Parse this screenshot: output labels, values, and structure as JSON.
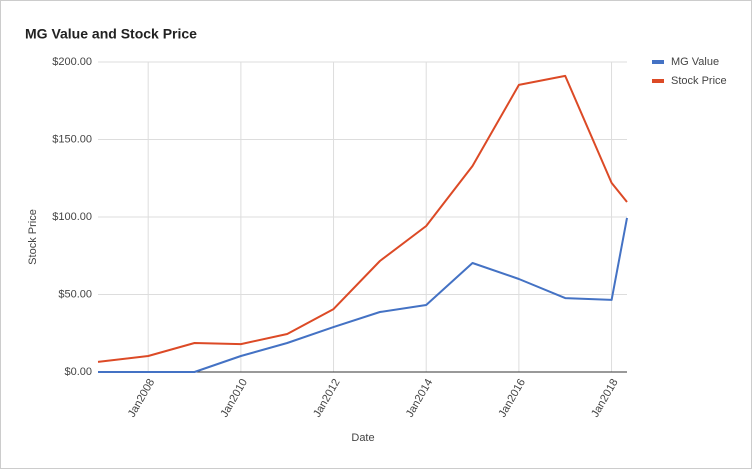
{
  "chart_data": {
    "type": "line",
    "title": "MG Value and Stock Price",
    "x_label": "Date",
    "y_label": "Stock Price",
    "x": [
      "2006-12",
      "2008-01",
      "2009-01",
      "2010-01",
      "2011-01",
      "2012-01",
      "2013-01",
      "2014-01",
      "2015-01",
      "2016-01",
      "2017-01",
      "2018-01",
      "2018-05"
    ],
    "xlim": [
      "2006-12",
      "2018-05"
    ],
    "xticks": [
      {
        "value": "2008-01",
        "label": "Jan2008"
      },
      {
        "value": "2010-01",
        "label": "Jan2010"
      },
      {
        "value": "2012-01",
        "label": "Jan2012"
      },
      {
        "value": "2014-01",
        "label": "Jan2014"
      },
      {
        "value": "2016-01",
        "label": "Jan2016"
      },
      {
        "value": "2018-01",
        "label": "Jan2018"
      }
    ],
    "ylim": [
      0,
      200
    ],
    "yticks": [
      {
        "value": 0,
        "label": "$0.00"
      },
      {
        "value": 50,
        "label": "$50.00"
      },
      {
        "value": 100,
        "label": "$100.00"
      },
      {
        "value": 150,
        "label": "$150.00"
      },
      {
        "value": 200,
        "label": "$200.00"
      }
    ],
    "grid": true,
    "legend": "right",
    "series": [
      {
        "name": "MG Value",
        "color": "#4472c4",
        "values": [
          0,
          0,
          0,
          10.3,
          18.7,
          29,
          38.7,
          43.2,
          70.3,
          60,
          47.7,
          46.5,
          99.4
        ]
      },
      {
        "name": "Stock Price",
        "color": "#dc4a26",
        "values": [
          6.5,
          10.3,
          18.7,
          18,
          24.5,
          40.6,
          71.6,
          94.2,
          132.9,
          185.2,
          191,
          122,
          109.7
        ]
      }
    ]
  }
}
